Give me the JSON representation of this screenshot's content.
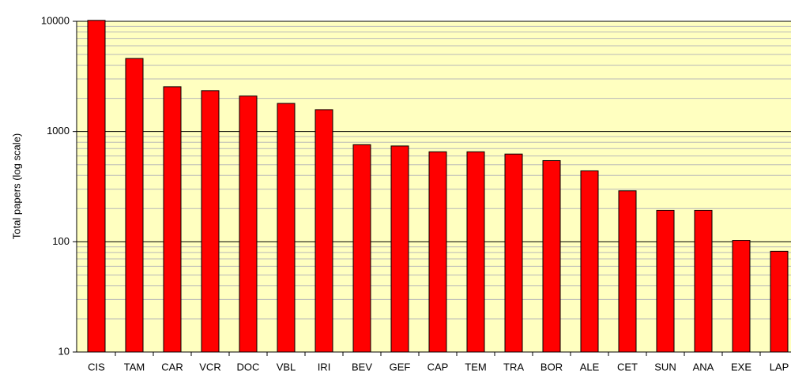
{
  "chart_data": {
    "type": "bar",
    "y_axis_label": "Total papers (log scale)",
    "categories": [
      "CIS",
      "TAM",
      "CAR",
      "VCR",
      "DOC",
      "VBL",
      "IRI",
      "BEV",
      "GEF",
      "CAP",
      "TEM",
      "TRA",
      "BOR",
      "ALE",
      "CET",
      "SUN",
      "ANA",
      "EXE",
      "LAP"
    ],
    "values": [
      10200,
      4600,
      2550,
      2350,
      2100,
      1800,
      1580,
      760,
      740,
      655,
      655,
      625,
      545,
      440,
      290,
      193,
      193,
      103,
      82
    ],
    "color": "#ff0000",
    "log_scale": true,
    "grid": true,
    "ylim": [
      10,
      10000
    ],
    "yticks": [
      10,
      100,
      1000,
      10000
    ]
  }
}
